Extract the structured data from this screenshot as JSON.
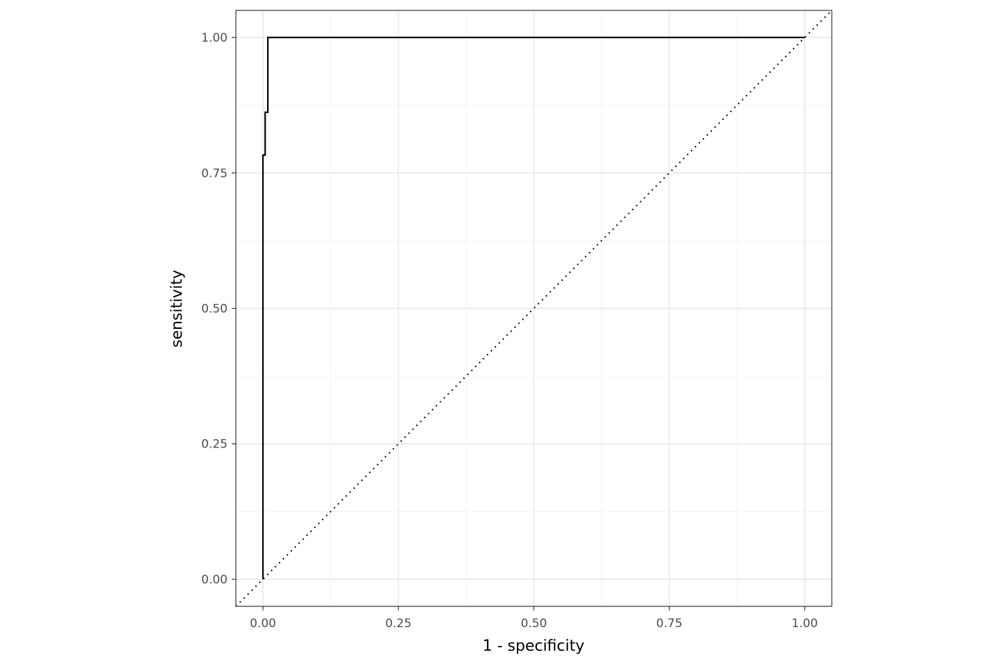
{
  "chart_data": {
    "type": "line",
    "title": "",
    "xlabel": "1 - specificity",
    "ylabel": "sensitivity",
    "xlim": [
      -0.05,
      1.05
    ],
    "ylim": [
      -0.05,
      1.05
    ],
    "grid": true,
    "x_ticks": [
      "0.00",
      "0.25",
      "0.50",
      "0.75",
      "1.00"
    ],
    "y_ticks": [
      "0.00",
      "0.25",
      "0.50",
      "0.75",
      "1.00"
    ],
    "series": [
      {
        "style": "step",
        "color": "#000000",
        "points": [
          [
            0,
            0
          ],
          [
            0,
            0.783
          ],
          [
            0.004,
            0.783
          ],
          [
            0.004,
            0.862
          ],
          [
            0.009,
            0.862
          ],
          [
            0.009,
            1
          ],
          [
            1,
            1
          ]
        ]
      }
    ],
    "reference_line": {
      "style": "dotted",
      "color": "#000000",
      "slope": 1,
      "intercept": 0
    }
  }
}
